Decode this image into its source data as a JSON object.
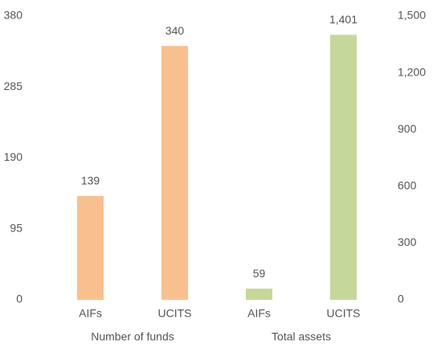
{
  "chart_data": {
    "type": "bar",
    "categories": [
      "AIFs",
      "UCITS",
      "AIFs",
      "UCITS"
    ],
    "group_labels": [
      "Number of funds",
      "Total assets"
    ],
    "series": [
      {
        "name": "Number of funds",
        "color": "#f9c08f",
        "values": [
          139,
          340,
          null,
          null
        ]
      },
      {
        "name": "Total assets",
        "color": "#c5d89a",
        "axis": "y2",
        "values": [
          null,
          null,
          59,
          1401
        ],
        "value_labels": [
          null,
          null,
          "59",
          "1,401"
        ]
      }
    ],
    "ylim": [
      0,
      380
    ],
    "yticks": [
      0,
      95,
      190,
      285,
      380
    ],
    "y2lim": [
      0,
      1500
    ],
    "y2ticks": [
      0,
      300,
      600,
      900,
      {
        "value": 1200,
        "label": "1,200"
      },
      {
        "value": 1500,
        "label": "1,500"
      }
    ],
    "grid": false
  }
}
